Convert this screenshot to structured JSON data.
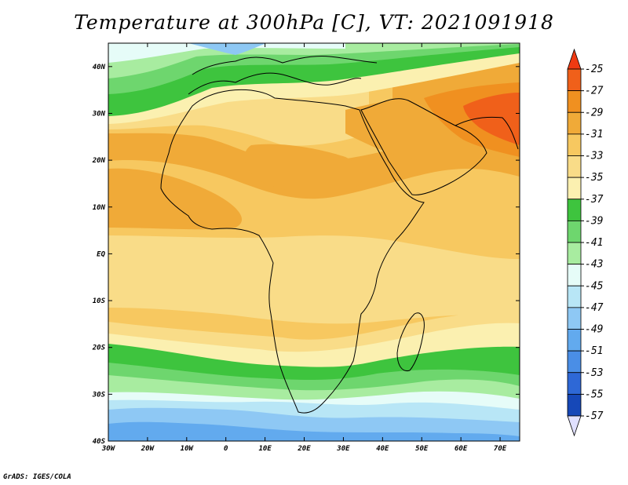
{
  "title": "Temperature at 300hPa [C], VT: 2021091918",
  "credit": "GrADS: IGES/COLA",
  "map": {
    "lon_range": [
      -30,
      75
    ],
    "lat_range": [
      -40,
      45
    ],
    "lon_ticks": [
      {
        "value": -30,
        "label": "30W"
      },
      {
        "value": -20,
        "label": "20W"
      },
      {
        "value": -10,
        "label": "10W"
      },
      {
        "value": 0,
        "label": "0"
      },
      {
        "value": 10,
        "label": "10E"
      },
      {
        "value": 20,
        "label": "20E"
      },
      {
        "value": 30,
        "label": "30E"
      },
      {
        "value": 40,
        "label": "40E"
      },
      {
        "value": 50,
        "label": "50E"
      },
      {
        "value": 60,
        "label": "60E"
      },
      {
        "value": 70,
        "label": "70E"
      }
    ],
    "lat_ticks": [
      {
        "value": 40,
        "label": "40N"
      },
      {
        "value": 30,
        "label": "30N"
      },
      {
        "value": 20,
        "label": "20N"
      },
      {
        "value": 10,
        "label": "10N"
      },
      {
        "value": 0,
        "label": "EQ"
      },
      {
        "value": -10,
        "label": "10S"
      },
      {
        "value": -20,
        "label": "20S"
      },
      {
        "value": -30,
        "label": "30S"
      },
      {
        "value": -40,
        "label": "40S"
      }
    ]
  },
  "colorbar": {
    "labels": [
      "-25",
      "-27",
      "-29",
      "-31",
      "-33",
      "-35",
      "-37",
      "-39",
      "-41",
      "-43",
      "-45",
      "-47",
      "-49",
      "-51",
      "-53",
      "-55",
      "-57"
    ],
    "colors": [
      "#f0601a",
      "#f09020",
      "#f0aa38",
      "#f7c860",
      "#f9dc88",
      "#fbf0b0",
      "#3ec43e",
      "#6ed66e",
      "#a8eca0",
      "#e6fcf8",
      "#b8e6f6",
      "#8ec8f4",
      "#62aaee",
      "#4a8ee6",
      "#2e68d6",
      "#1648b8",
      "#0a1e78"
    ],
    "top_color": "#f03a12",
    "bottom_color": "#e0e0ff"
  }
}
